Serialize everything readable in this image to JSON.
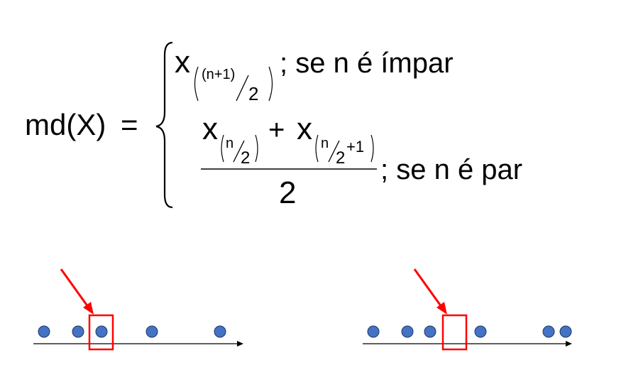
{
  "formula": {
    "lhs": "md(X)",
    "equals": "=",
    "case1": {
      "var": "x",
      "sub_num": "(n+1)",
      "sub_den": "2",
      "condition": "; se n é ímpar"
    },
    "case2": {
      "term1_var": "x",
      "term1_sub_num": "n",
      "term1_sub_den": "2",
      "plus": "+",
      "term2_var": "x",
      "term2_sub_num": "n",
      "term2_sub_den": "2",
      "term2_sub_add": "+1",
      "denominator": "2",
      "condition": "; se n é par"
    }
  },
  "examples": {
    "odd": {
      "points": 5,
      "median_index": 3
    },
    "even": {
      "points": 6,
      "median_between": [
        3,
        4
      ]
    }
  },
  "colors": {
    "dot_fill": "#4472C4",
    "dot_stroke": "#1F3864",
    "highlight": "#FF0000",
    "axis": "#000000"
  }
}
